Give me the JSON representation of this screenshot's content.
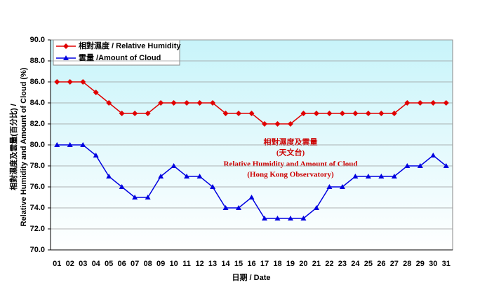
{
  "chart_data": {
    "type": "line",
    "title_lines": [
      "相對濕度及雲量",
      "(天文台)",
      "Relative Humidity and Amount of Cloud",
      "(Hong Kong Observatory)"
    ],
    "x_label": "日期 / Date",
    "y_label_lines": [
      "相對濕度及雲量(百分比) /",
      "Relative Humidity and Amount of Cloud (%)"
    ],
    "categories": [
      "01",
      "02",
      "03",
      "04",
      "05",
      "06",
      "07",
      "08",
      "09",
      "10",
      "11",
      "12",
      "13",
      "14",
      "15",
      "16",
      "17",
      "18",
      "19",
      "20",
      "21",
      "22",
      "23",
      "24",
      "25",
      "26",
      "27",
      "28",
      "29",
      "30",
      "31"
    ],
    "series": [
      {
        "name": "相對濕度 / Relative Humidity",
        "color": "#e00000",
        "marker": "diamond",
        "values": [
          86,
          86,
          86,
          85,
          84,
          83,
          83,
          83,
          84,
          84,
          84,
          84,
          84,
          83,
          83,
          83,
          82,
          82,
          82,
          83,
          83,
          83,
          83,
          83,
          83,
          83,
          83,
          84,
          84,
          84,
          84
        ]
      },
      {
        "name": "雲量 /Amount of Cloud",
        "color": "#0000e0",
        "marker": "triangle",
        "values": [
          80,
          80,
          80,
          79,
          77,
          76,
          75,
          75,
          77,
          78,
          77,
          77,
          76,
          74,
          74,
          75,
          73,
          73,
          73,
          73,
          74,
          76,
          76,
          77,
          77,
          77,
          77,
          78,
          78,
          79,
          78
        ]
      }
    ],
    "ylim": [
      70,
      90
    ],
    "yticks": [
      {
        "value": 70,
        "label": "70.0"
      },
      {
        "value": 72,
        "label": "72.0"
      },
      {
        "value": 74,
        "label": "74.0"
      },
      {
        "value": 76,
        "label": "76.0"
      },
      {
        "value": 78,
        "label": "78.0"
      },
      {
        "value": 80,
        "label": "80.0"
      },
      {
        "value": 82,
        "label": "82.0"
      },
      {
        "value": 84,
        "label": "84.0"
      },
      {
        "value": 86,
        "label": "86.0"
      },
      {
        "value": 88,
        "label": "88.0"
      },
      {
        "value": 90,
        "label": "90.0"
      }
    ],
    "grid": true,
    "legend": "top-left"
  }
}
